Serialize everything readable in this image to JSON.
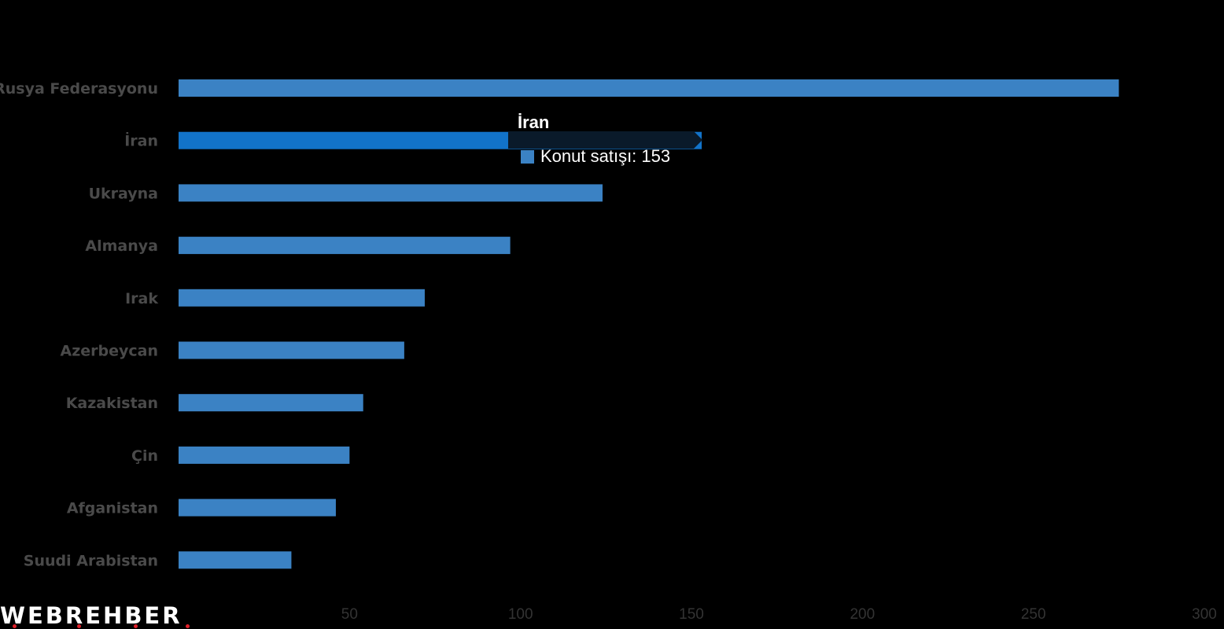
{
  "chart_data": {
    "type": "bar",
    "orientation": "horizontal",
    "categories": [
      "Rusya Federasyonu",
      "İran",
      "Ukrayna",
      "Almanya",
      "Irak",
      "Azerbeycan",
      "Kazakistan",
      "Çin",
      "Afganistan",
      "Suudi Arabistan"
    ],
    "series": [
      {
        "name": "Konut satışı",
        "values": [
          275,
          153,
          124,
          97,
          72,
          66,
          54,
          50,
          46,
          33
        ],
        "color": "#3b82c4"
      }
    ],
    "highlight_color": "#1273c9",
    "x_ticks": [
      "50",
      "100",
      "150",
      "200",
      "250",
      "300"
    ],
    "xlim": [
      0,
      300
    ],
    "grid": false,
    "legend": "none"
  },
  "tooltip": {
    "title": "İran",
    "series_name": "Konut satışı",
    "value": "153",
    "text": "Konut satışı: 153"
  },
  "logo": {
    "text": "WEBREHBER"
  },
  "colors": {
    "background": "#000000",
    "bar": "#3b82c4",
    "bar_highlight": "#1273c9",
    "tooltip_bg": "#0a1a2a"
  }
}
